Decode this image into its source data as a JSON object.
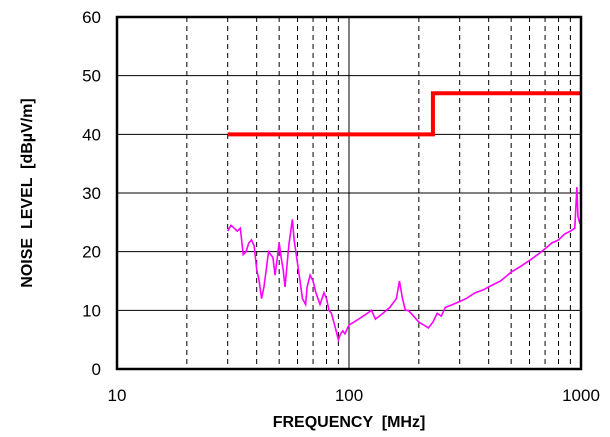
{
  "chart_data": {
    "type": "line",
    "title": "",
    "xlabel": "FREQUENCY  [MHz]",
    "ylabel": "NOISE  LEVEL  [dBµV/m]",
    "x_scale": "log",
    "xlim": [
      10,
      1000
    ],
    "ylim": [
      0,
      60
    ],
    "x_tick_labels": [
      "10",
      "100",
      "1000"
    ],
    "y_tick_labels": [
      "0",
      "10",
      "20",
      "30",
      "40",
      "50",
      "60"
    ],
    "grid": {
      "vertical": "dashed minor decades",
      "horizontal": "solid every 10"
    },
    "legend": "none",
    "series": [
      {
        "color": "#ff0000",
        "style": "thick step line",
        "points": [
          [
            30,
            40
          ],
          [
            230,
            40
          ],
          [
            230,
            47
          ],
          [
            1000,
            47
          ]
        ]
      },
      {
        "color": "#ff00ff",
        "style": "thin noisy line",
        "points": [
          [
            30,
            23.5
          ],
          [
            31,
            24.5
          ],
          [
            32,
            24
          ],
          [
            33,
            23.5
          ],
          [
            34,
            24
          ],
          [
            35,
            19.5
          ],
          [
            36,
            20
          ],
          [
            37,
            21.5
          ],
          [
            38,
            22
          ],
          [
            39,
            21
          ],
          [
            40,
            17
          ],
          [
            41,
            15
          ],
          [
            42,
            12
          ],
          [
            43,
            14
          ],
          [
            44,
            17
          ],
          [
            45,
            20
          ],
          [
            47,
            19
          ],
          [
            48,
            16
          ],
          [
            50,
            21.5
          ],
          [
            51,
            19
          ],
          [
            52,
            17
          ],
          [
            53,
            14
          ],
          [
            55,
            21
          ],
          [
            57,
            25.5
          ],
          [
            58,
            22
          ],
          [
            60,
            18
          ],
          [
            62,
            14
          ],
          [
            63,
            12
          ],
          [
            65,
            11
          ],
          [
            66,
            14
          ],
          [
            68,
            16
          ],
          [
            70,
            15
          ],
          [
            72,
            13
          ],
          [
            75,
            11
          ],
          [
            78,
            13
          ],
          [
            80,
            12
          ],
          [
            82,
            10
          ],
          [
            84,
            9.5
          ],
          [
            86,
            8
          ],
          [
            88,
            6.5
          ],
          [
            90,
            5
          ],
          [
            92,
            6
          ],
          [
            94,
            6.5
          ],
          [
            96,
            6
          ],
          [
            100,
            7.5
          ],
          [
            105,
            8
          ],
          [
            110,
            8.5
          ],
          [
            115,
            9
          ],
          [
            120,
            9.5
          ],
          [
            125,
            10
          ],
          [
            130,
            8.5
          ],
          [
            140,
            9.5
          ],
          [
            150,
            10.5
          ],
          [
            160,
            12
          ],
          [
            165,
            15
          ],
          [
            170,
            12
          ],
          [
            175,
            10
          ],
          [
            180,
            10
          ],
          [
            190,
            9
          ],
          [
            200,
            8
          ],
          [
            210,
            7.5
          ],
          [
            220,
            7
          ],
          [
            230,
            8
          ],
          [
            240,
            9.5
          ],
          [
            250,
            9
          ],
          [
            260,
            10.5
          ],
          [
            280,
            11
          ],
          [
            300,
            11.5
          ],
          [
            320,
            12
          ],
          [
            350,
            13
          ],
          [
            380,
            13.5
          ],
          [
            400,
            14
          ],
          [
            450,
            15
          ],
          [
            500,
            16.5
          ],
          [
            550,
            17.5
          ],
          [
            600,
            18.5
          ],
          [
            650,
            19.5
          ],
          [
            700,
            20.5
          ],
          [
            750,
            21.5
          ],
          [
            800,
            22
          ],
          [
            850,
            23
          ],
          [
            900,
            23.5
          ],
          [
            940,
            24
          ],
          [
            960,
            31
          ],
          [
            970,
            26
          ],
          [
            985,
            25
          ],
          [
            1000,
            25.5
          ]
        ]
      }
    ]
  }
}
